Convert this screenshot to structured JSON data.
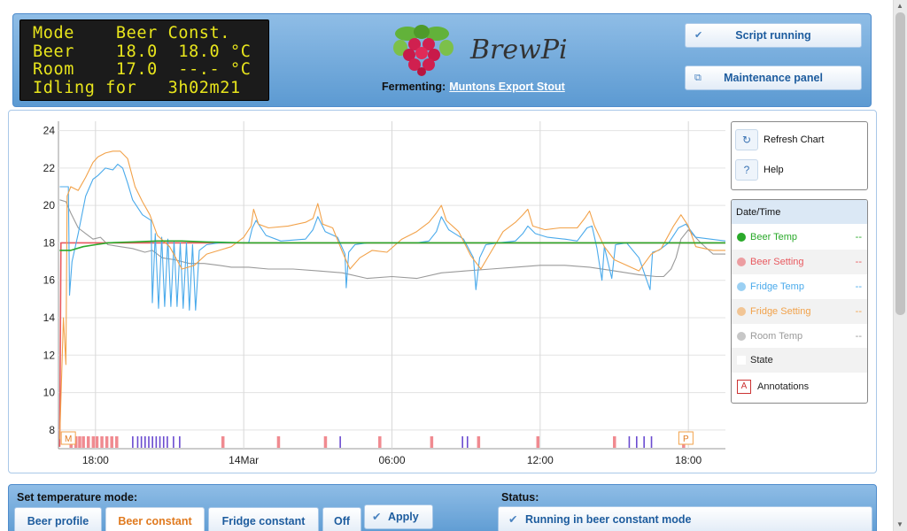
{
  "lcd": {
    "lines": [
      "Mode    Beer Const.",
      "Beer    18.0  18.0 °C",
      "Room    17.0  --.- °C",
      "Idling for   3h02m21"
    ]
  },
  "header": {
    "logo_text": "BrewPi",
    "fermenting_label": "Fermenting:",
    "fermenting_name": "Muntons Export Stout",
    "script_button": "Script running",
    "maintenance_button": "Maintenance panel"
  },
  "tools": {
    "refresh": "Refresh Chart",
    "help": "Help"
  },
  "legend": {
    "header": "Date/Time",
    "items": [
      {
        "name": "Beer Temp",
        "value": "--",
        "color": "#2aa92a"
      },
      {
        "name": "Beer Setting",
        "value": "--",
        "color": "#e8595f"
      },
      {
        "name": "Fridge Temp",
        "value": "--",
        "color": "#4aaaeb"
      },
      {
        "name": "Fridge Setting",
        "value": "--",
        "color": "#f2a24a"
      },
      {
        "name": "Room Temp",
        "value": "--",
        "color": "#9a9a9a"
      }
    ],
    "state": "State",
    "annotations": "Annotations",
    "annotation_icon_letter": "A"
  },
  "controls": {
    "mode_title": "Set temperature mode:",
    "tabs": [
      "Beer profile",
      "Beer constant",
      "Fridge constant",
      "Off"
    ],
    "active_tab": "Beer constant",
    "apply": "Apply",
    "status_title": "Status:",
    "status_text": "Running in beer constant mode"
  },
  "chart_data": {
    "type": "line",
    "x_range_hours": [
      16.5,
      43.5
    ],
    "x_ticks": [
      {
        "h": 18,
        "label": "18:00"
      },
      {
        "h": 24,
        "label": "14Mar"
      },
      {
        "h": 30,
        "label": "06:00"
      },
      {
        "h": 36,
        "label": "12:00"
      },
      {
        "h": 42,
        "label": "18:00"
      }
    ],
    "ylim": [
      7,
      24.5
    ],
    "y_ticks": [
      8,
      10,
      12,
      14,
      16,
      18,
      20,
      22,
      24
    ],
    "grid": true,
    "markers": [
      {
        "h": 16.9,
        "label": "M"
      },
      {
        "h": 41.9,
        "label": "P"
      }
    ],
    "series": [
      {
        "name": "Beer Setting",
        "color": "#e8595f",
        "points": [
          [
            16.55,
            7.1
          ],
          [
            16.6,
            18.0
          ],
          [
            43.5,
            18.0
          ]
        ]
      },
      {
        "name": "Beer Temp",
        "color": "#2aa92a",
        "points": [
          [
            16.55,
            17.6
          ],
          [
            17.0,
            17.6
          ],
          [
            17.5,
            17.8
          ],
          [
            18.0,
            17.9
          ],
          [
            18.5,
            18.0
          ],
          [
            19.5,
            18.05
          ],
          [
            20.5,
            18.1
          ],
          [
            21.5,
            18.1
          ],
          [
            22.5,
            18.05
          ],
          [
            24.0,
            18.0
          ],
          [
            30.0,
            18.0
          ],
          [
            36.0,
            18.0
          ],
          [
            43.5,
            18.0
          ]
        ]
      },
      {
        "name": "Fridge Temp",
        "color": "#4aaaeb",
        "points": [
          [
            16.55,
            21.0
          ],
          [
            16.9,
            21.0
          ],
          [
            16.95,
            15.2
          ],
          [
            17.05,
            17.0
          ],
          [
            17.3,
            18.5
          ],
          [
            17.6,
            20.5
          ],
          [
            17.9,
            21.4
          ],
          [
            18.1,
            21.6
          ],
          [
            18.4,
            22.0
          ],
          [
            18.7,
            21.9
          ],
          [
            18.9,
            22.2
          ],
          [
            19.1,
            22.0
          ],
          [
            19.3,
            21.2
          ],
          [
            19.5,
            20.3
          ],
          [
            19.9,
            19.5
          ],
          [
            20.25,
            19.2
          ],
          [
            20.3,
            14.8
          ],
          [
            20.42,
            18.5
          ],
          [
            20.55,
            14.5
          ],
          [
            20.68,
            18.3
          ],
          [
            20.8,
            14.6
          ],
          [
            20.93,
            18.2
          ],
          [
            21.05,
            14.6
          ],
          [
            21.18,
            18.1
          ],
          [
            21.3,
            14.6
          ],
          [
            21.43,
            18.0
          ],
          [
            21.55,
            14.5
          ],
          [
            21.68,
            18.0
          ],
          [
            21.8,
            14.4
          ],
          [
            21.93,
            17.9
          ],
          [
            22.05,
            14.4
          ],
          [
            22.2,
            17.6
          ],
          [
            22.5,
            17.9
          ],
          [
            23.0,
            18.0
          ],
          [
            23.5,
            18.0
          ],
          [
            24.2,
            18.0
          ],
          [
            24.35,
            18.8
          ],
          [
            24.5,
            19.2
          ],
          [
            24.9,
            18.4
          ],
          [
            25.5,
            18.1
          ],
          [
            26.5,
            18.2
          ],
          [
            26.8,
            18.7
          ],
          [
            27.0,
            19.4
          ],
          [
            27.3,
            18.6
          ],
          [
            27.8,
            18.3
          ],
          [
            28.1,
            17.4
          ],
          [
            28.15,
            15.6
          ],
          [
            28.25,
            17.5
          ],
          [
            28.5,
            17.9
          ],
          [
            29.0,
            18.0
          ],
          [
            30.0,
            18.0
          ],
          [
            31.0,
            18.0
          ],
          [
            31.5,
            18.1
          ],
          [
            31.8,
            18.6
          ],
          [
            32.0,
            19.4
          ],
          [
            32.3,
            18.7
          ],
          [
            32.9,
            18.2
          ],
          [
            33.3,
            17.2
          ],
          [
            33.4,
            15.5
          ],
          [
            33.55,
            17.2
          ],
          [
            33.8,
            17.9
          ],
          [
            34.3,
            18.0
          ],
          [
            35.0,
            18.1
          ],
          [
            35.3,
            18.5
          ],
          [
            35.5,
            18.9
          ],
          [
            35.8,
            18.5
          ],
          [
            36.3,
            18.3
          ],
          [
            37.0,
            18.2
          ],
          [
            37.5,
            18.1
          ],
          [
            37.9,
            18.8
          ],
          [
            38.1,
            18.9
          ],
          [
            38.3,
            17.7
          ],
          [
            38.5,
            16.0
          ],
          [
            38.6,
            17.8
          ],
          [
            38.9,
            16.1
          ],
          [
            39.05,
            17.9
          ],
          [
            39.5,
            18.0
          ],
          [
            40.0,
            17.2
          ],
          [
            40.45,
            15.5
          ],
          [
            40.55,
            17.5
          ],
          [
            40.8,
            17.6
          ],
          [
            41.2,
            18.0
          ],
          [
            41.6,
            18.8
          ],
          [
            41.9,
            19.0
          ],
          [
            42.3,
            18.3
          ],
          [
            43.5,
            18.1
          ]
        ]
      },
      {
        "name": "Fridge Setting",
        "color": "#f2a24a",
        "points": [
          [
            16.55,
            7.5
          ],
          [
            16.7,
            14.0
          ],
          [
            16.8,
            11.5
          ],
          [
            16.85,
            20.5
          ],
          [
            17.0,
            21.0
          ],
          [
            17.3,
            20.8
          ],
          [
            17.6,
            21.5
          ],
          [
            17.9,
            22.3
          ],
          [
            18.1,
            22.6
          ],
          [
            18.4,
            22.8
          ],
          [
            18.7,
            22.9
          ],
          [
            19.0,
            22.9
          ],
          [
            19.3,
            22.5
          ],
          [
            19.6,
            21.0
          ],
          [
            19.9,
            20.2
          ],
          [
            20.2,
            19.5
          ],
          [
            20.5,
            18.4
          ],
          [
            21.0,
            17.8
          ],
          [
            21.5,
            16.6
          ],
          [
            22.0,
            16.8
          ],
          [
            22.5,
            17.4
          ],
          [
            23.0,
            17.6
          ],
          [
            23.5,
            17.8
          ],
          [
            24.0,
            18.3
          ],
          [
            24.3,
            18.9
          ],
          [
            24.4,
            19.8
          ],
          [
            24.6,
            19.0
          ],
          [
            25.0,
            18.8
          ],
          [
            25.8,
            18.9
          ],
          [
            26.5,
            19.1
          ],
          [
            26.8,
            19.3
          ],
          [
            27.0,
            20.1
          ],
          [
            27.2,
            19.0
          ],
          [
            27.6,
            18.8
          ],
          [
            28.0,
            17.5
          ],
          [
            28.3,
            16.6
          ],
          [
            28.7,
            17.2
          ],
          [
            29.2,
            17.6
          ],
          [
            29.8,
            17.5
          ],
          [
            30.4,
            18.2
          ],
          [
            31.0,
            18.6
          ],
          [
            31.5,
            19.1
          ],
          [
            31.8,
            19.6
          ],
          [
            32.0,
            20.0
          ],
          [
            32.2,
            19.2
          ],
          [
            32.7,
            18.6
          ],
          [
            33.2,
            17.3
          ],
          [
            33.6,
            16.6
          ],
          [
            34.0,
            17.5
          ],
          [
            34.5,
            18.6
          ],
          [
            35.0,
            19.1
          ],
          [
            35.3,
            19.5
          ],
          [
            35.5,
            19.8
          ],
          [
            35.7,
            18.9
          ],
          [
            36.2,
            18.7
          ],
          [
            36.8,
            18.8
          ],
          [
            37.5,
            18.8
          ],
          [
            37.8,
            19.3
          ],
          [
            38.0,
            19.7
          ],
          [
            38.2,
            18.9
          ],
          [
            38.6,
            17.8
          ],
          [
            39.0,
            17.1
          ],
          [
            39.5,
            16.8
          ],
          [
            40.0,
            16.5
          ],
          [
            40.5,
            17.4
          ],
          [
            40.9,
            17.7
          ],
          [
            41.4,
            18.9
          ],
          [
            41.7,
            19.5
          ],
          [
            42.0,
            18.9
          ],
          [
            42.3,
            17.8
          ],
          [
            43.0,
            17.6
          ],
          [
            43.5,
            17.6
          ]
        ]
      },
      {
        "name": "Room Temp",
        "color": "#9a9a9a",
        "points": [
          [
            16.55,
            20.3
          ],
          [
            16.8,
            20.2
          ],
          [
            17.0,
            19.6
          ],
          [
            17.3,
            18.8
          ],
          [
            17.6,
            18.5
          ],
          [
            17.9,
            18.2
          ],
          [
            18.2,
            18.3
          ],
          [
            18.5,
            17.9
          ],
          [
            19.0,
            17.8
          ],
          [
            19.5,
            17.7
          ],
          [
            20.0,
            17.5
          ],
          [
            20.3,
            17.6
          ],
          [
            20.7,
            17.2
          ],
          [
            21.2,
            17.1
          ],
          [
            21.8,
            16.9
          ],
          [
            22.4,
            16.9
          ],
          [
            23.0,
            16.8
          ],
          [
            23.5,
            16.7
          ],
          [
            24.2,
            16.7
          ],
          [
            25.0,
            16.6
          ],
          [
            26.0,
            16.6
          ],
          [
            27.0,
            16.5
          ],
          [
            28.0,
            16.4
          ],
          [
            29.0,
            16.1
          ],
          [
            30.0,
            16.2
          ],
          [
            31.0,
            16.1
          ],
          [
            32.0,
            16.4
          ],
          [
            33.0,
            16.5
          ],
          [
            34.0,
            16.6
          ],
          [
            35.0,
            16.7
          ],
          [
            36.0,
            16.8
          ],
          [
            37.0,
            16.8
          ],
          [
            38.0,
            16.7
          ],
          [
            39.0,
            16.5
          ],
          [
            40.0,
            16.3
          ],
          [
            40.7,
            16.2
          ],
          [
            41.0,
            16.2
          ],
          [
            41.3,
            16.6
          ],
          [
            41.5,
            17.2
          ],
          [
            41.7,
            18.2
          ],
          [
            42.0,
            18.7
          ],
          [
            42.5,
            18.0
          ],
          [
            43.0,
            17.4
          ],
          [
            43.5,
            17.4
          ]
        ]
      }
    ],
    "state_marks": {
      "red": [
        17.0,
        17.2,
        17.35,
        17.5,
        17.7,
        17.9,
        18.05,
        18.25,
        18.45,
        18.65,
        18.85,
        23.15,
        25.4,
        27.3,
        29.5,
        31.6,
        33.5,
        35.9,
        39.0,
        41.8
      ],
      "purple": [
        19.5,
        19.7,
        19.85,
        20.0,
        20.15,
        20.3,
        20.45,
        20.6,
        20.75,
        20.9,
        21.15,
        21.4,
        27.9,
        32.85,
        33.05,
        39.6,
        39.9,
        40.2,
        40.5
      ]
    }
  }
}
